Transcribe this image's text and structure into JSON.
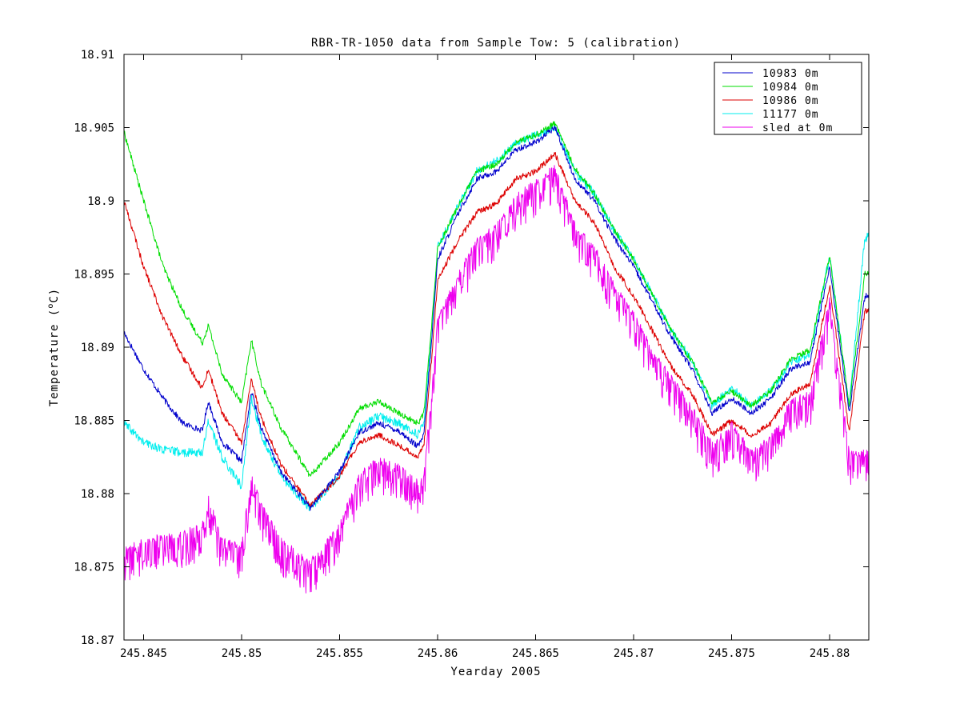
{
  "chart_data": {
    "type": "line",
    "title": "RBR-TR-1050 data from Sample Tow: 5 (calibration)",
    "xlabel": "Yearday 2005",
    "ylabel_text": "Temperature (",
    "ylabel_sup": "o",
    "ylabel_unit": "C)",
    "xlim": [
      245.844,
      245.882
    ],
    "ylim": [
      18.87,
      18.91
    ],
    "xticks": [
      245.845,
      245.85,
      245.855,
      245.86,
      245.865,
      245.87,
      245.875,
      245.88
    ],
    "xtick_labels": [
      "245.845",
      "245.85",
      "245.855",
      "245.86",
      "245.865",
      "245.87",
      "245.875",
      "245.88"
    ],
    "yticks": [
      18.87,
      18.875,
      18.88,
      18.885,
      18.89,
      18.895,
      18.9,
      18.905,
      18.91
    ],
    "ytick_labels": [
      "18.87",
      "18.875",
      "18.88",
      "18.885",
      "18.89",
      "18.895",
      "18.9",
      "18.905",
      "18.91"
    ],
    "grid": false,
    "legend_position": "top-right",
    "noise_amplitude": [
      0.0002,
      0.0002,
      0.0002,
      0.0003,
      0.0013
    ],
    "series": [
      {
        "name": "10983 0m",
        "color": "#0000cc",
        "x": [
          245.844,
          245.845,
          245.846,
          245.847,
          245.848,
          245.8483,
          245.849,
          245.85,
          245.8505,
          245.851,
          245.852,
          245.8535,
          245.855,
          245.856,
          245.857,
          245.858,
          245.859,
          245.8593,
          245.8597,
          245.86,
          245.861,
          245.862,
          245.863,
          245.864,
          245.865,
          245.866,
          245.867,
          245.868,
          245.869,
          245.87,
          245.871,
          245.872,
          245.873,
          245.874,
          245.875,
          245.876,
          245.877,
          245.878,
          245.879,
          245.88,
          245.881,
          245.8818
        ],
        "y": [
          18.891,
          18.8885,
          18.8865,
          18.8848,
          18.8843,
          18.8863,
          18.8835,
          18.8822,
          18.887,
          18.8845,
          18.8815,
          18.879,
          18.8815,
          18.8842,
          18.8848,
          18.8843,
          18.8832,
          18.884,
          18.8905,
          18.896,
          18.899,
          18.9015,
          18.902,
          18.9035,
          18.904,
          18.905,
          18.9015,
          18.9,
          18.8975,
          18.8955,
          18.893,
          18.8905,
          18.8885,
          18.8855,
          18.8865,
          18.8855,
          18.8865,
          18.8885,
          18.889,
          18.8955,
          18.8855,
          18.8935
        ]
      },
      {
        "name": "10984 0m",
        "color": "#00dd00",
        "x": [
          245.844,
          245.845,
          245.846,
          245.847,
          245.848,
          245.8483,
          245.849,
          245.85,
          245.8505,
          245.851,
          245.852,
          245.8535,
          245.855,
          245.856,
          245.857,
          245.858,
          245.859,
          245.8593,
          245.8597,
          245.86,
          245.861,
          245.862,
          245.863,
          245.864,
          245.865,
          245.866,
          245.867,
          245.868,
          245.869,
          245.87,
          245.871,
          245.872,
          245.873,
          245.874,
          245.875,
          245.876,
          245.877,
          245.878,
          245.879,
          245.88,
          245.881,
          245.8818
        ],
        "y": [
          18.9047,
          18.9,
          18.8955,
          18.8925,
          18.8903,
          18.8915,
          18.8882,
          18.8862,
          18.8905,
          18.8875,
          18.8845,
          18.8812,
          18.8835,
          18.8858,
          18.8863,
          18.8855,
          18.8848,
          18.8855,
          18.8915,
          18.8968,
          18.8995,
          18.902,
          18.9025,
          18.904,
          18.9045,
          18.9053,
          18.9022,
          18.9005,
          18.898,
          18.896,
          18.8935,
          18.891,
          18.889,
          18.8862,
          18.887,
          18.886,
          18.887,
          18.8892,
          18.8898,
          18.8962,
          18.886,
          18.895
        ]
      },
      {
        "name": "10986 0m",
        "color": "#dd0000",
        "x": [
          245.844,
          245.845,
          245.846,
          245.847,
          245.848,
          245.8483,
          245.849,
          245.85,
          245.8505,
          245.851,
          245.852,
          245.8535,
          245.855,
          245.856,
          245.857,
          245.858,
          245.859,
          245.8593,
          245.8597,
          245.86,
          245.861,
          245.862,
          245.863,
          245.864,
          245.865,
          245.866,
          245.867,
          245.868,
          245.869,
          245.87,
          245.871,
          245.872,
          245.873,
          245.874,
          245.875,
          245.876,
          245.877,
          245.878,
          245.879,
          245.88,
          245.881,
          245.8818
        ],
        "y": [
          18.9,
          18.8955,
          18.892,
          18.8893,
          18.8872,
          18.8885,
          18.8855,
          18.8835,
          18.8878,
          18.8852,
          18.882,
          18.8792,
          18.8812,
          18.8835,
          18.884,
          18.8833,
          18.8825,
          18.8833,
          18.8893,
          18.8945,
          18.8972,
          18.8992,
          18.8998,
          18.9015,
          18.902,
          18.9032,
          18.9,
          18.8985,
          18.8955,
          18.8935,
          18.891,
          18.8885,
          18.8868,
          18.884,
          18.885,
          18.884,
          18.8848,
          18.8868,
          18.8875,
          18.8942,
          18.8842,
          18.8925
        ]
      },
      {
        "name": "11177 0m",
        "color": "#00eeee",
        "x": [
          245.844,
          245.845,
          245.846,
          245.847,
          245.848,
          245.8483,
          245.849,
          245.85,
          245.8505,
          245.851,
          245.852,
          245.8535,
          245.855,
          245.856,
          245.857,
          245.858,
          245.859,
          245.8593,
          245.8597,
          245.86,
          245.861,
          245.862,
          245.863,
          245.864,
          245.865,
          245.866,
          245.867,
          245.868,
          245.869,
          245.87,
          245.871,
          245.872,
          245.873,
          245.874,
          245.875,
          245.876,
          245.877,
          245.878,
          245.879,
          245.88,
          245.881,
          245.8818
        ],
        "y": [
          18.8848,
          18.8835,
          18.883,
          18.8828,
          18.8828,
          18.885,
          18.8825,
          18.8805,
          18.8865,
          18.884,
          18.8812,
          18.879,
          18.8813,
          18.8845,
          18.8853,
          18.8848,
          18.884,
          18.8848,
          18.8912,
          18.8968,
          18.8995,
          18.902,
          18.9027,
          18.904,
          18.9045,
          18.905,
          18.902,
          18.9005,
          18.898,
          18.896,
          18.8935,
          18.891,
          18.889,
          18.886,
          18.8872,
          18.886,
          18.887,
          18.889,
          18.8895,
          18.8962,
          18.886,
          18.8975
        ]
      },
      {
        "name": "sled at 0m",
        "color": "#ee00ee",
        "x": [
          245.844,
          245.845,
          245.846,
          245.847,
          245.848,
          245.8483,
          245.849,
          245.85,
          245.8505,
          245.851,
          245.852,
          245.8535,
          245.855,
          245.856,
          245.857,
          245.858,
          245.859,
          245.8593,
          245.8597,
          245.86,
          245.861,
          245.862,
          245.863,
          245.864,
          245.865,
          245.866,
          245.867,
          245.868,
          245.869,
          245.87,
          245.871,
          245.872,
          245.873,
          245.874,
          245.875,
          245.876,
          245.877,
          245.878,
          245.879,
          245.88,
          245.881,
          245.8818
        ],
        "y": [
          18.8758,
          18.8765,
          18.8768,
          18.877,
          18.8775,
          18.8795,
          18.8765,
          18.8762,
          18.881,
          18.879,
          18.8765,
          18.875,
          18.8775,
          18.881,
          18.882,
          18.8815,
          18.8805,
          18.881,
          18.8868,
          18.8915,
          18.8945,
          18.897,
          18.898,
          18.9,
          18.901,
          18.902,
          18.898,
          18.8965,
          18.894,
          18.892,
          18.8895,
          18.8875,
          18.8855,
          18.883,
          18.8845,
          18.8825,
          18.8835,
          18.886,
          18.8865,
          18.893,
          18.8825,
          18.8825
        ]
      }
    ]
  }
}
